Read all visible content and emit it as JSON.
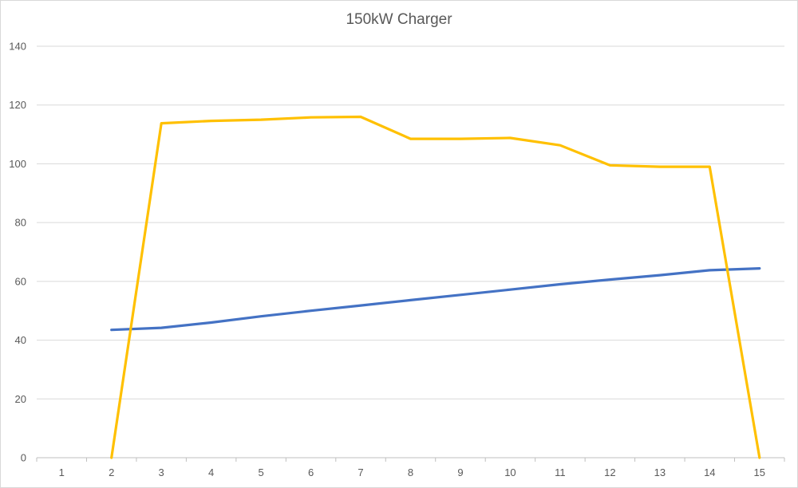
{
  "chart_data": {
    "type": "line",
    "title": "150kW Charger",
    "xlabel": "",
    "ylabel": "",
    "categories": [
      "1",
      "2",
      "3",
      "4",
      "5",
      "6",
      "7",
      "8",
      "9",
      "10",
      "11",
      "12",
      "13",
      "14",
      "15"
    ],
    "ylim": [
      0,
      140
    ],
    "yticks": [
      0,
      20,
      40,
      60,
      80,
      100,
      120,
      140
    ],
    "grid": true,
    "legend": "none",
    "series": [
      {
        "color": "#4472c4",
        "values": [
          null,
          43.5,
          44.2,
          46.0,
          48.1,
          50.0,
          51.8,
          53.6,
          55.4,
          57.2,
          59.0,
          60.6,
          62.1,
          63.8,
          64.4
        ]
      },
      {
        "color": "#ffc000",
        "values": [
          null,
          0,
          113.8,
          114.6,
          115.0,
          115.8,
          116.0,
          108.5,
          108.5,
          108.8,
          106.3,
          99.5,
          99.0,
          99.0,
          0
        ]
      }
    ]
  }
}
